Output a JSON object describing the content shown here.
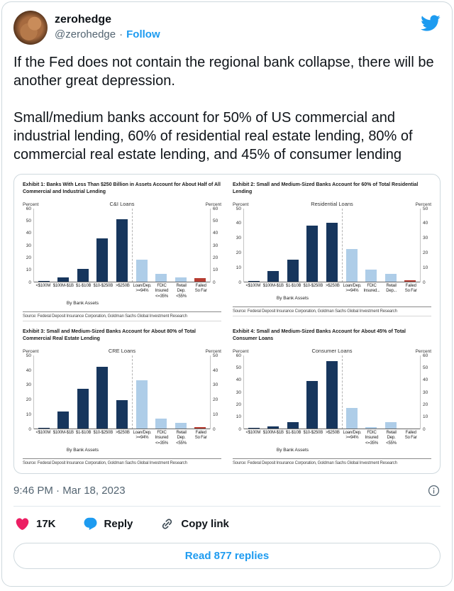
{
  "header": {
    "name": "zerohedge",
    "handle": "@zerohedge",
    "separator": "·",
    "follow_label": "Follow"
  },
  "tweet": {
    "paragraph1": "If the Fed does not contain the regional bank collapse, there will be another great depression.",
    "paragraph2": "Small/medium banks account for 50% of US commercial and industrial lending, 60% of residential real estate lending, 80% of commercial real estate lending, and 45% of consumer lending"
  },
  "footer": {
    "timestamp": "9:46 PM · Mar 18, 2023",
    "like_count": "17K",
    "reply_label": "Reply",
    "copy_link_label": "Copy link",
    "read_replies_label": "Read 877 replies"
  },
  "colors": {
    "accent_blue": "#1d9bf0",
    "heart_pink": "#ec1e63",
    "gray_text": "#536471",
    "bar_navy": "#17365d",
    "bar_light_blue": "#aecde8",
    "bar_red": "#b63d32"
  },
  "chart_data": [
    {
      "type": "bar",
      "exhibit_title": "Exhibit 1: Banks With Less Than $250 Billion in Assets Account for About Half of All Commercial and Industrial Lending",
      "title": "C&I Loans",
      "axis_label": "Percent",
      "ylim": [
        0,
        60
      ],
      "ticks": [
        0,
        10,
        20,
        30,
        40,
        50,
        60
      ],
      "categories": [
        "<$100M",
        "$100M-$1B",
        "$1-$10B",
        "$10-$250B",
        ">$250B",
        "Loan/Dep.\n>=94%",
        "FDIC\nInsured\n<=35%",
        "Retail\nDep.\n<55%",
        "Failed\nSo Far"
      ],
      "values": [
        0.2,
        3.5,
        10,
        35.5,
        51,
        18,
        6,
        3.5,
        2.5
      ],
      "bar_colors": [
        "navy",
        "navy",
        "navy",
        "navy",
        "navy",
        "light",
        "light",
        "light",
        "red"
      ],
      "group_label": "By Bank Assets",
      "source": "Source: Federal Deposit Insurance Corporation, Goldman Sachs Global Investment Research"
    },
    {
      "type": "bar",
      "exhibit_title": "Exhibit 2: Small and Medium-Sized Banks Account for 60% of Total Residential Lending",
      "title": "Residential Loans",
      "axis_label": "Percent",
      "ylim": [
        0,
        50
      ],
      "ticks": [
        0,
        10,
        20,
        30,
        40,
        50
      ],
      "categories": [
        "<$100M",
        "$100M-$1B",
        "$1-$10B",
        "$10-$250B",
        ">$250B",
        "Loan/Dep.\n>=94%",
        "FDIC\nInsured...",
        "Retail\nDep...",
        "Failed\nSo Far"
      ],
      "values": [
        0.5,
        7,
        15,
        38,
        40,
        22,
        8,
        5,
        1
      ],
      "bar_colors": [
        "navy",
        "navy",
        "navy",
        "navy",
        "navy",
        "light",
        "light",
        "light",
        "red"
      ],
      "group_label": "By Bank Assets",
      "source": "Source: Federal Deposit Insurance Corporation, Goldman Sachs Global Investment Research"
    },
    {
      "type": "bar",
      "exhibit_title": "Exhibit 3: Small and Medium-Sized Banks Account for About 80% of Total Commercial Real Estate Lending",
      "title": "CRE Loans",
      "axis_label": "Percent",
      "ylim": [
        0,
        50
      ],
      "ticks": [
        0,
        10,
        20,
        30,
        40,
        50
      ],
      "categories": [
        "<$100M",
        "$100M-$1B",
        "$1-$10B",
        "$10-$250B",
        ">$250B",
        "Loan/Dep.\n>=94%",
        "FDIC\nInsured\n<=35%",
        "Retail\nDep.\n<55%",
        "Failed\nSo Far"
      ],
      "values": [
        0.5,
        11.5,
        27,
        42,
        19.5,
        33,
        6.5,
        3.5,
        1
      ],
      "bar_colors": [
        "navy",
        "navy",
        "navy",
        "navy",
        "navy",
        "light",
        "light",
        "light",
        "red"
      ],
      "group_label": "By Bank Assets",
      "source": "Source: Federal Deposit Insurance Corporation, Goldman Sachs Global Investment Research"
    },
    {
      "type": "bar",
      "exhibit_title": "Exhibit 4: Small and Medium-Sized Banks Account for About 45% of Total Consumer Loans",
      "title": "Consumer Loans",
      "axis_label": "Percent",
      "ylim": [
        0,
        60
      ],
      "ticks": [
        0,
        10,
        20,
        30,
        40,
        50,
        60
      ],
      "categories": [
        "<$100M",
        "$100M-$1B",
        "$1-$10B",
        "$10-$250B",
        ">$250B",
        "Loan/Dep.\n>=94%",
        "FDIC\nInsured\n<=35%",
        "Retail\nDep.\n<55%",
        "Failed\nSo Far"
      ],
      "values": [
        0.3,
        1.5,
        5,
        39,
        55,
        16.5,
        1,
        5,
        0
      ],
      "bar_colors": [
        "navy",
        "navy",
        "navy",
        "navy",
        "navy",
        "light",
        "light",
        "light",
        "red"
      ],
      "group_label": "By Bank Assets",
      "source": "Source: Federal Deposit Insurance Corporation, Goldman Sachs Global Investment Research"
    }
  ]
}
